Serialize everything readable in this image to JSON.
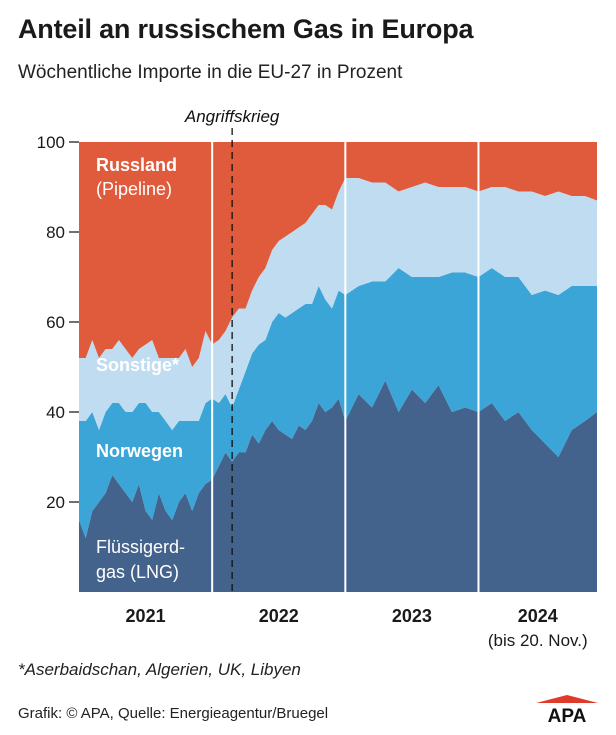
{
  "title": "Anteil an russischem Gas in Europa",
  "subtitle": "Wöchentliche Importe in die EU-27 in Prozent",
  "annotation": "Angriffskrieg",
  "footnote": "*Aserbaidschan, Algerien, UK, Libyen",
  "credit": "Grafik: © APA, Quelle: Energieagentur/Bruegel",
  "logo_text": "APA",
  "colors": {
    "russland": "#e05a3c",
    "sonstige": "#c0dcf0",
    "norwegen": "#3aa5d6",
    "lng": "#44638c",
    "divider": "#ffffff",
    "axis_text": "#1a1a1a"
  },
  "chart_data": {
    "type": "area",
    "stacked": true,
    "normalized": true,
    "ylim": [
      0,
      100
    ],
    "yticks": [
      20,
      40,
      60,
      80,
      100
    ],
    "xlim": [
      2021.0,
      2024.89
    ],
    "x_labels": [
      "2021",
      "2022",
      "2023",
      "2024"
    ],
    "x_label_note": "(bis 20. Nov.)",
    "year_dividers": [
      2022,
      2023,
      2024
    ],
    "event_line_x": 2022.15,
    "x": [
      2021.0,
      2021.05,
      2021.1,
      2021.15,
      2021.2,
      2021.25,
      2021.3,
      2021.35,
      2021.4,
      2021.45,
      2021.5,
      2021.55,
      2021.6,
      2021.65,
      2021.7,
      2021.75,
      2021.8,
      2021.85,
      2021.9,
      2021.95,
      2022.0,
      2022.05,
      2022.1,
      2022.15,
      2022.2,
      2022.25,
      2022.3,
      2022.35,
      2022.4,
      2022.45,
      2022.5,
      2022.55,
      2022.6,
      2022.65,
      2022.7,
      2022.75,
      2022.8,
      2022.85,
      2022.9,
      2022.95,
      2023.0,
      2023.1,
      2023.2,
      2023.3,
      2023.4,
      2023.5,
      2023.6,
      2023.7,
      2023.8,
      2023.9,
      2024.0,
      2024.1,
      2024.2,
      2024.3,
      2024.4,
      2024.5,
      2024.6,
      2024.7,
      2024.8,
      2024.89
    ],
    "series": [
      {
        "name": "Flüssigerdgas (LNG)",
        "values": [
          16,
          12,
          18,
          20,
          22,
          26,
          24,
          22,
          20,
          24,
          18,
          16,
          22,
          18,
          16,
          20,
          22,
          18,
          22,
          24,
          25,
          28,
          31,
          29,
          31,
          31,
          35,
          33,
          36,
          38,
          36,
          35,
          34,
          37,
          36,
          38,
          42,
          40,
          41,
          43,
          38,
          44,
          41,
          47,
          40,
          45,
          42,
          46,
          40,
          41,
          40,
          42,
          38,
          40,
          36,
          33,
          30,
          36,
          38,
          40
        ]
      },
      {
        "name": "Norwegen",
        "values": [
          22,
          26,
          22,
          16,
          18,
          16,
          18,
          18,
          20,
          18,
          24,
          24,
          18,
          20,
          20,
          18,
          16,
          20,
          16,
          18,
          18,
          14,
          13,
          12,
          14,
          18,
          18,
          22,
          20,
          22,
          26,
          26,
          28,
          26,
          28,
          26,
          26,
          25,
          22,
          24,
          28,
          24,
          28,
          22,
          32,
          25,
          28,
          24,
          31,
          30,
          30,
          30,
          32,
          30,
          30,
          34,
          36,
          32,
          30,
          28
        ]
      },
      {
        "name": "Sonstige*",
        "values": [
          14,
          14,
          16,
          16,
          14,
          12,
          14,
          14,
          12,
          12,
          13,
          16,
          12,
          14,
          16,
          14,
          16,
          12,
          14,
          16,
          12,
          14,
          14,
          20,
          18,
          14,
          14,
          15,
          16,
          16,
          16,
          18,
          18,
          18,
          18,
          20,
          18,
          21,
          22,
          22,
          26,
          24,
          22,
          22,
          17,
          20,
          21,
          20,
          19,
          19,
          19,
          18,
          20,
          19,
          23,
          21,
          23,
          20,
          20,
          19
        ]
      },
      {
        "name": "Russland (Pipeline)",
        "values": [
          48,
          48,
          44,
          48,
          46,
          46,
          44,
          46,
          48,
          46,
          45,
          44,
          48,
          48,
          48,
          48,
          46,
          50,
          48,
          42,
          45,
          44,
          42,
          39,
          37,
          37,
          33,
          30,
          28,
          24,
          22,
          21,
          20,
          19,
          18,
          16,
          14,
          14,
          15,
          11,
          8,
          8,
          9,
          9,
          11,
          10,
          9,
          10,
          10,
          10,
          11,
          10,
          10,
          11,
          11,
          12,
          11,
          12,
          12,
          13
        ]
      }
    ],
    "series_labels": [
      {
        "series": 3,
        "line1": "Russland",
        "line2": "(Pipeline)"
      },
      {
        "series": 2,
        "line1": "Sonstige*"
      },
      {
        "series": 1,
        "line1": "Norwegen"
      },
      {
        "series": 0,
        "line1": "Flüssigerd-",
        "line2": "gas (LNG)"
      }
    ]
  }
}
